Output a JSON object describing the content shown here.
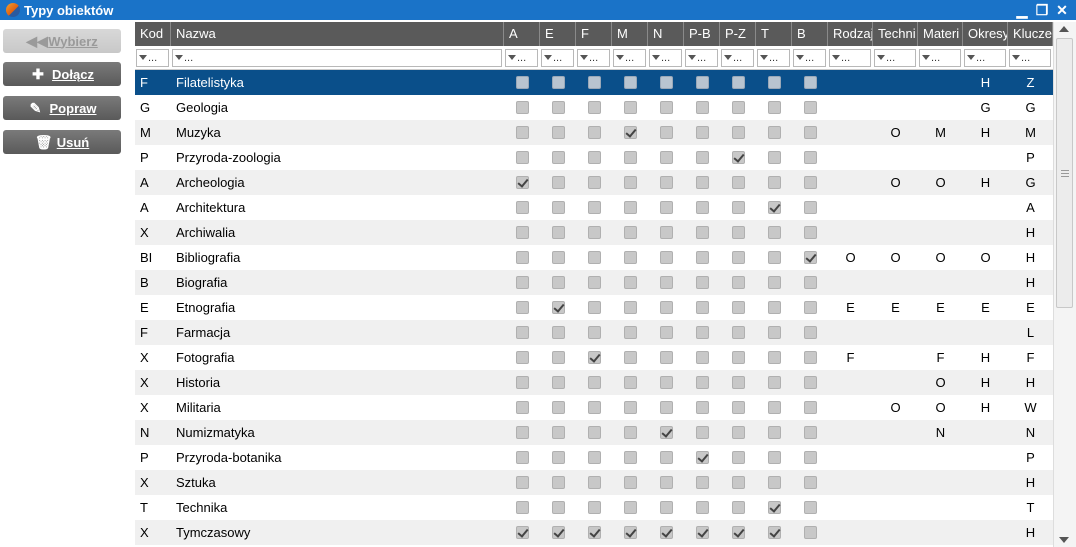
{
  "window": {
    "title": "Typy obiektów"
  },
  "sidebar": {
    "buttons": [
      {
        "label": "Wybierz",
        "icon": "rewind-icon",
        "disabled": true
      },
      {
        "label": "Dołącz",
        "icon": "plus-icon",
        "disabled": false
      },
      {
        "label": "Popraw",
        "icon": "pencil-icon",
        "disabled": false
      },
      {
        "label": "Usuń",
        "icon": "trash-icon",
        "disabled": false
      }
    ]
  },
  "grid": {
    "columns": [
      "Kod",
      "Nazwa",
      "A",
      "E",
      "F",
      "M",
      "N",
      "P-B",
      "P-Z",
      "T",
      "B",
      "Rodzaj",
      "Techni",
      "Materi",
      "Okresy",
      "Klucze"
    ],
    "filter_placeholder": "...",
    "rows": [
      {
        "kod": "F",
        "nazwa": "Filatelistyka",
        "checks": [
          0,
          0,
          0,
          0,
          0,
          0,
          0,
          0,
          0
        ],
        "rodzaj": "",
        "techni": "",
        "materi": "",
        "okresy": "H",
        "klucze": "Z"
      },
      {
        "kod": "G",
        "nazwa": "Geologia",
        "checks": [
          0,
          0,
          0,
          0,
          0,
          0,
          0,
          0,
          0
        ],
        "rodzaj": "",
        "techni": "",
        "materi": "",
        "okresy": "G",
        "klucze": "G"
      },
      {
        "kod": "M",
        "nazwa": "Muzyka",
        "checks": [
          0,
          0,
          0,
          1,
          0,
          0,
          0,
          0,
          0
        ],
        "rodzaj": "",
        "techni": "O",
        "materi": "M",
        "okresy": "H",
        "klucze": "M"
      },
      {
        "kod": "P",
        "nazwa": "Przyroda-zoologia",
        "checks": [
          0,
          0,
          0,
          0,
          0,
          0,
          1,
          0,
          0
        ],
        "rodzaj": "",
        "techni": "",
        "materi": "",
        "okresy": "",
        "klucze": "P"
      },
      {
        "kod": "A",
        "nazwa": "Archeologia",
        "checks": [
          1,
          0,
          0,
          0,
          0,
          0,
          0,
          0,
          0
        ],
        "rodzaj": "",
        "techni": "O",
        "materi": "O",
        "okresy": "H",
        "klucze": "G"
      },
      {
        "kod": "A",
        "nazwa": "Architektura",
        "checks": [
          0,
          0,
          0,
          0,
          0,
          0,
          0,
          1,
          0
        ],
        "rodzaj": "",
        "techni": "",
        "materi": "",
        "okresy": "",
        "klucze": "A"
      },
      {
        "kod": "X",
        "nazwa": "Archiwalia",
        "checks": [
          0,
          0,
          0,
          0,
          0,
          0,
          0,
          0,
          0
        ],
        "rodzaj": "",
        "techni": "",
        "materi": "",
        "okresy": "",
        "klucze": "H"
      },
      {
        "kod": "BI",
        "nazwa": "Bibliografia",
        "checks": [
          0,
          0,
          0,
          0,
          0,
          0,
          0,
          0,
          1
        ],
        "rodzaj": "O",
        "techni": "O",
        "materi": "O",
        "okresy": "O",
        "klucze": "H"
      },
      {
        "kod": "B",
        "nazwa": "Biografia",
        "checks": [
          0,
          0,
          0,
          0,
          0,
          0,
          0,
          0,
          0
        ],
        "rodzaj": "",
        "techni": "",
        "materi": "",
        "okresy": "",
        "klucze": "H"
      },
      {
        "kod": "E",
        "nazwa": "Etnografia",
        "checks": [
          0,
          1,
          0,
          0,
          0,
          0,
          0,
          0,
          0
        ],
        "rodzaj": "E",
        "techni": "E",
        "materi": "E",
        "okresy": "E",
        "klucze": "E"
      },
      {
        "kod": "F",
        "nazwa": "Farmacja",
        "checks": [
          0,
          0,
          0,
          0,
          0,
          0,
          0,
          0,
          0
        ],
        "rodzaj": "",
        "techni": "",
        "materi": "",
        "okresy": "",
        "klucze": "L"
      },
      {
        "kod": "X",
        "nazwa": "Fotografia",
        "checks": [
          0,
          0,
          1,
          0,
          0,
          0,
          0,
          0,
          0
        ],
        "rodzaj": "F",
        "techni": "",
        "materi": "F",
        "okresy": "H",
        "klucze": "F"
      },
      {
        "kod": "X",
        "nazwa": "Historia",
        "checks": [
          0,
          0,
          0,
          0,
          0,
          0,
          0,
          0,
          0
        ],
        "rodzaj": "",
        "techni": "",
        "materi": "O",
        "okresy": "H",
        "klucze": "H"
      },
      {
        "kod": "X",
        "nazwa": "Militaria",
        "checks": [
          0,
          0,
          0,
          0,
          0,
          0,
          0,
          0,
          0
        ],
        "rodzaj": "",
        "techni": "O",
        "materi": "O",
        "okresy": "H",
        "klucze": "W"
      },
      {
        "kod": "N",
        "nazwa": "Numizmatyka",
        "checks": [
          0,
          0,
          0,
          0,
          1,
          0,
          0,
          0,
          0
        ],
        "rodzaj": "",
        "techni": "",
        "materi": "N",
        "okresy": "",
        "klucze": "N"
      },
      {
        "kod": "P",
        "nazwa": "Przyroda-botanika",
        "checks": [
          0,
          0,
          0,
          0,
          0,
          1,
          0,
          0,
          0
        ],
        "rodzaj": "",
        "techni": "",
        "materi": "",
        "okresy": "",
        "klucze": "P"
      },
      {
        "kod": "X",
        "nazwa": "Sztuka",
        "checks": [
          0,
          0,
          0,
          0,
          0,
          0,
          0,
          0,
          0
        ],
        "rodzaj": "",
        "techni": "",
        "materi": "",
        "okresy": "",
        "klucze": "H"
      },
      {
        "kod": "T",
        "nazwa": "Technika",
        "checks": [
          0,
          0,
          0,
          0,
          0,
          0,
          0,
          1,
          0
        ],
        "rodzaj": "",
        "techni": "",
        "materi": "",
        "okresy": "",
        "klucze": "T"
      },
      {
        "kod": "X",
        "nazwa": "Tymczasowy",
        "checks": [
          1,
          1,
          1,
          1,
          1,
          1,
          1,
          1,
          0
        ],
        "rodzaj": "",
        "techni": "",
        "materi": "",
        "okresy": "",
        "klucze": "H"
      }
    ],
    "selected_row": 0
  },
  "colors": {
    "titlebar": "#1a73c8",
    "header": "#5a5a5a",
    "selected_row": "#0a4f8a"
  }
}
